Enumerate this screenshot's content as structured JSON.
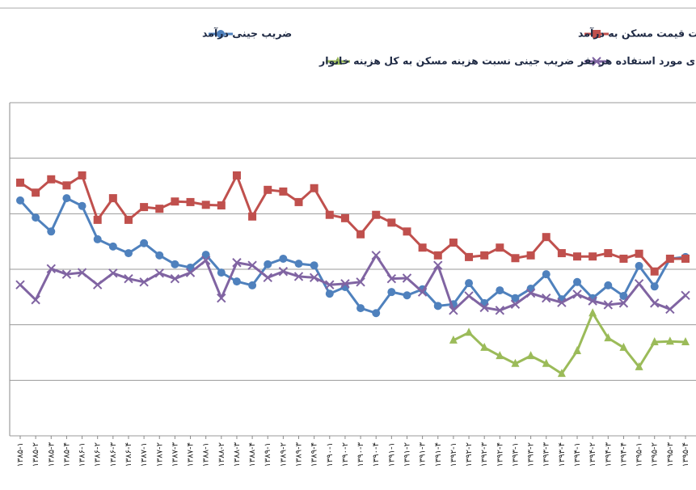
{
  "chart_data": {
    "type": "line",
    "categories": [
      "۱۳۸۵-۱",
      "۱۳۸۵-۲",
      "۱۳۸۵-۳",
      "۱۳۸۵-۴",
      "۱۳۸۶-۱",
      "۱۳۸۶-۲",
      "۱۳۸۶-۳",
      "۱۳۸۶-۴",
      "۱۳۸۷-۱",
      "۱۳۸۷-۲",
      "۱۳۸۷-۳",
      "۱۳۸۷-۴",
      "۱۳۸۸-۱",
      "۱۳۸۸-۲",
      "۱۳۸۸-۳",
      "۱۳۸۸-۴",
      "۱۳۸۹-۱",
      "۱۳۸۹-۲",
      "۱۳۸۹-۳",
      "۱۳۸۹-۴",
      "۱۳۹۰-۱",
      "۱۳۹۰-۲",
      "۱۳۹۰-۳",
      "۱۳۹۰-۴",
      "۱۳۹۱-۱",
      "۱۳۹۱-۲",
      "۱۳۹۱-۳",
      "۱۳۹۱-۴",
      "۱۳۹۲-۱",
      "۱۳۹۲-۲",
      "۱۳۹۲-۳",
      "۱۳۹۲-۴",
      "۱۳۹۳-۱",
      "۱۳۹۳-۲",
      "۱۳۹۳-۳",
      "۱۳۹۳-۴",
      "۱۳۹۴-۱",
      "۱۳۹۴-۲",
      "۱۳۹۴-۳",
      "۱۳۹۴-۴",
      "۱۳۹۵-۱",
      "۱۳۹۵-۲",
      "۱۳۹۵-۳",
      "۱۳۹۵-۴"
    ],
    "series": [
      {
        "name": "ضریب جینی درآمد",
        "color": "#4f81bd",
        "marker": "circle",
        "values": [
          4.24,
          3.93,
          3.68,
          4.28,
          4.14,
          3.54,
          3.41,
          3.29,
          3.47,
          3.25,
          3.09,
          3.03,
          3.26,
          2.94,
          2.78,
          2.71,
          3.09,
          3.19,
          3.1,
          3.07,
          2.56,
          2.68,
          2.3,
          2.21,
          2.59,
          2.53,
          2.64,
          2.34,
          2.37,
          2.75,
          2.39,
          2.62,
          2.48,
          2.65,
          2.91,
          2.46,
          2.77,
          2.48,
          2.71,
          2.52,
          3.06,
          2.69,
          3.19,
          3.22
        ]
      },
      {
        "name": "ضریب جینی نسبت قیمت مسکن به درآمد",
        "color": "#c0504d",
        "marker": "square",
        "values": [
          4.56,
          4.38,
          4.62,
          4.51,
          4.69,
          3.89,
          4.28,
          3.89,
          4.12,
          4.09,
          4.22,
          4.21,
          4.16,
          4.15,
          4.69,
          3.95,
          4.43,
          4.4,
          4.21,
          4.46,
          3.98,
          3.92,
          3.63,
          3.98,
          3.84,
          3.68,
          3.39,
          3.25,
          3.48,
          3.22,
          3.25,
          3.39,
          3.2,
          3.25,
          3.58,
          3.29,
          3.23,
          3.23,
          3.29,
          3.19,
          3.28,
          2.96,
          3.19,
          3.19
        ]
      },
      {
        "name": "ضریب جینی نسبت هزینه مسکن به کل هزینه خانوار",
        "color": "#9bbb59",
        "marker": "triangle",
        "values": [
          null,
          null,
          null,
          null,
          null,
          null,
          null,
          null,
          null,
          null,
          null,
          null,
          null,
          null,
          null,
          null,
          null,
          null,
          null,
          null,
          null,
          null,
          null,
          null,
          null,
          null,
          null,
          null,
          1.72,
          1.86,
          1.59,
          1.44,
          1.3,
          1.44,
          1.3,
          1.12,
          1.53,
          2.21,
          1.76,
          1.59,
          1.24,
          1.69,
          1.7,
          1.69
        ]
      },
      {
        "name": "ضریب جینی فضای مورد استفاده هر نفر",
        "color": "#8064a2",
        "marker": "x",
        "values": [
          2.72,
          2.45,
          3.01,
          2.91,
          2.94,
          2.72,
          2.93,
          2.83,
          2.77,
          2.93,
          2.83,
          2.94,
          3.16,
          2.48,
          3.12,
          3.07,
          2.85,
          2.96,
          2.87,
          2.85,
          2.72,
          2.74,
          2.77,
          3.25,
          2.83,
          2.84,
          2.59,
          3.07,
          2.26,
          2.52,
          2.31,
          2.26,
          2.37,
          2.57,
          2.48,
          2.4,
          2.55,
          2.43,
          2.36,
          2.39,
          2.74,
          2.39,
          2.28,
          2.53
        ]
      }
    ],
    "ylim": [
      0,
      6
    ],
    "yticks": [
      0,
      1,
      2,
      3,
      4,
      5,
      6
    ],
    "grid": true
  }
}
